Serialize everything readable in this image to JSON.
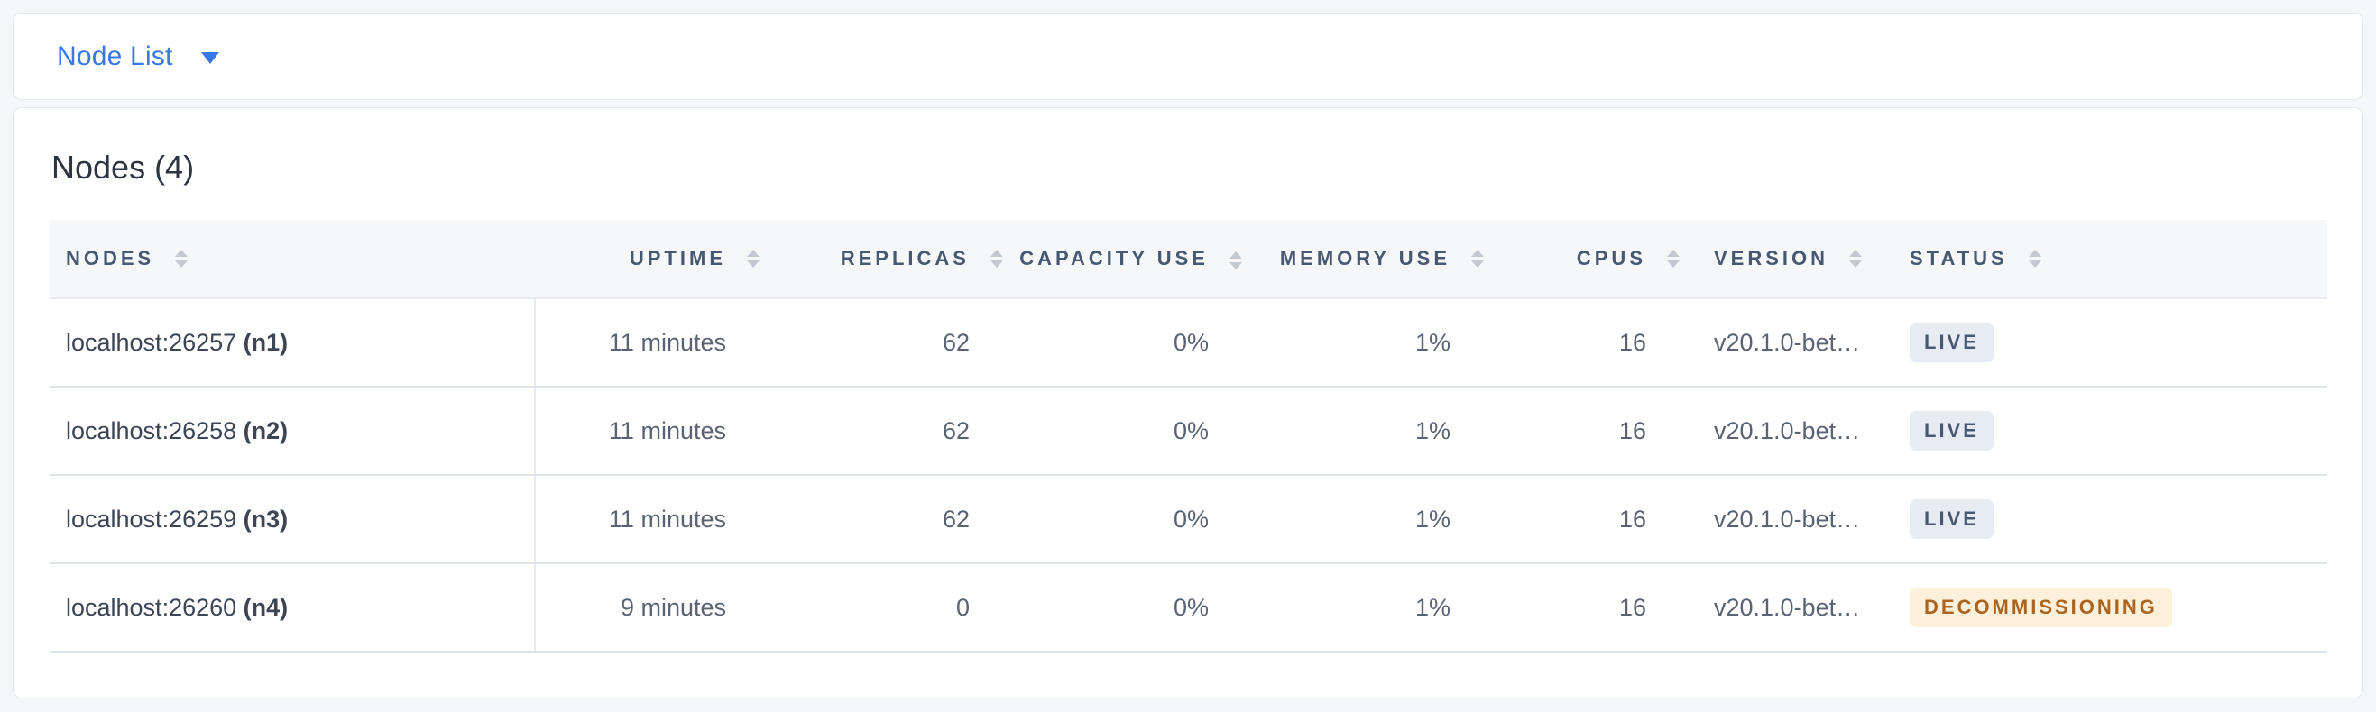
{
  "toolbar": {
    "view_selector_label": "Node List"
  },
  "main": {
    "title": "Nodes (4)",
    "table": {
      "columns": [
        {
          "key": "nodes",
          "label": "NODES",
          "align": "left",
          "wrap": false,
          "sortable": true
        },
        {
          "key": "uptime",
          "label": "UPTIME",
          "align": "right",
          "wrap": false,
          "sortable": true
        },
        {
          "key": "replicas",
          "label": "REPLICAS",
          "align": "right",
          "wrap": false,
          "sortable": true
        },
        {
          "key": "capacity",
          "label": "CAPACITY USE",
          "align": "right",
          "wrap": true,
          "sortable": true
        },
        {
          "key": "memory",
          "label": "MEMORY USE",
          "align": "right",
          "wrap": false,
          "sortable": true
        },
        {
          "key": "cpus",
          "label": "CPUS",
          "align": "right",
          "wrap": false,
          "sortable": true
        },
        {
          "key": "version",
          "label": "VERSION",
          "align": "left",
          "wrap": false,
          "sortable": true
        },
        {
          "key": "status",
          "label": "STATUS",
          "align": "left",
          "wrap": false,
          "sortable": true
        }
      ],
      "rows": [
        {
          "address": "localhost:26257",
          "node_id": "(n1)",
          "uptime": "11 minutes",
          "replicas": "62",
          "capacity_use": "0%",
          "memory_use": "1%",
          "cpus": "16",
          "version": "v20.1.0-bet…",
          "status_label": "LIVE",
          "status_type": "live"
        },
        {
          "address": "localhost:26258",
          "node_id": "(n2)",
          "uptime": "11 minutes",
          "replicas": "62",
          "capacity_use": "0%",
          "memory_use": "1%",
          "cpus": "16",
          "version": "v20.1.0-bet…",
          "status_label": "LIVE",
          "status_type": "live"
        },
        {
          "address": "localhost:26259",
          "node_id": "(n3)",
          "uptime": "11 minutes",
          "replicas": "62",
          "capacity_use": "0%",
          "memory_use": "1%",
          "cpus": "16",
          "version": "v20.1.0-bet…",
          "status_label": "LIVE",
          "status_type": "live"
        },
        {
          "address": "localhost:26260",
          "node_id": "(n4)",
          "uptime": "9 minutes",
          "replicas": "0",
          "capacity_use": "0%",
          "memory_use": "1%",
          "cpus": "16",
          "version": "v20.1.0-bet…",
          "status_label": "DECOMMISSIONING",
          "status_type": "decommissioning"
        }
      ]
    }
  },
  "colors": {
    "accent_blue": "#3a78e8",
    "page_background": "#f4f6fa",
    "header_text": "#475872",
    "live_badge_bg": "#e7ebf2",
    "live_badge_text": "#475872",
    "decommissioning_badge_bg": "#fcf0da",
    "decommissioning_badge_text": "#aa6420"
  }
}
